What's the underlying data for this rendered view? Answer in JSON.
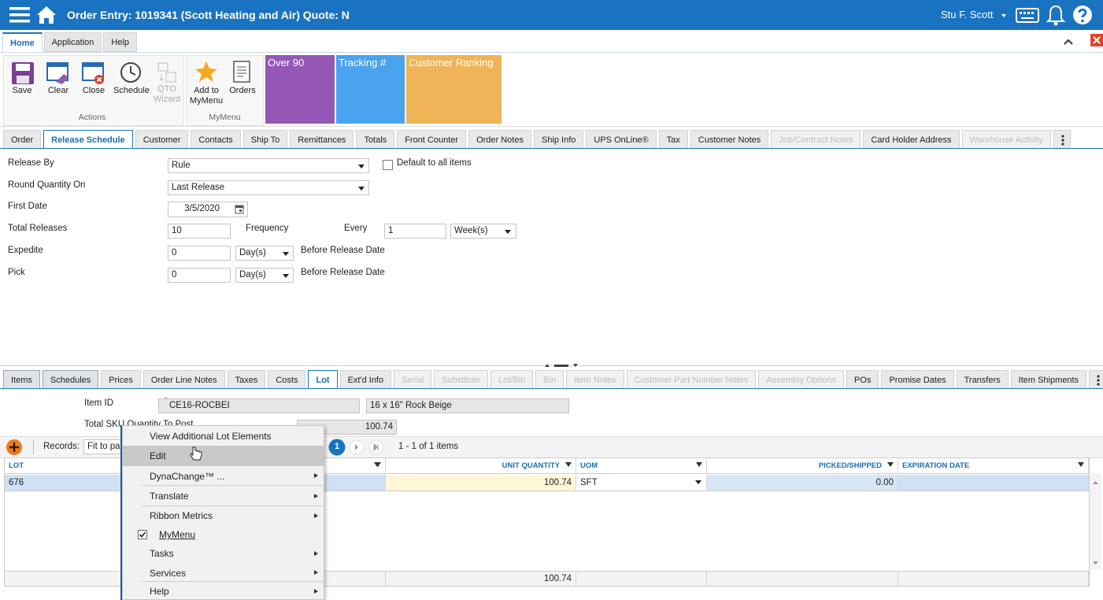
{
  "header": {
    "title": "Order Entry: 1019341 (Scott Heating and Air) Quote: N",
    "user": "Stu F. Scott"
  },
  "ribbon": {
    "tabs": [
      "Home",
      "Application",
      "Help"
    ],
    "groups": [
      {
        "label": "Actions",
        "buttons": [
          "Save",
          "Clear",
          "Close",
          "Schedule",
          "QTO Wizard"
        ]
      },
      {
        "label": "MyMenu",
        "buttons": [
          "Add to MyMenu",
          "Orders"
        ]
      }
    ],
    "tiles": [
      {
        "label": "Over 90",
        "color": "#9457b5"
      },
      {
        "label": "Tracking #",
        "color": "#4aa3ee"
      },
      {
        "label": "Customer Ranking",
        "color": "#efb458"
      }
    ]
  },
  "tabs": [
    {
      "label": "Order"
    },
    {
      "label": "Release Schedule",
      "state": "active"
    },
    {
      "label": "Customer"
    },
    {
      "label": "Contacts"
    },
    {
      "label": "Ship To"
    },
    {
      "label": "Remittances"
    },
    {
      "label": "Totals"
    },
    {
      "label": "Front Counter"
    },
    {
      "label": "Order Notes"
    },
    {
      "label": "Ship Info"
    },
    {
      "label": "UPS OnLine®"
    },
    {
      "label": "Tax"
    },
    {
      "label": "Customer Notes"
    },
    {
      "label": "Job/Contract Notes",
      "state": "disabled"
    },
    {
      "label": "Card Holder Address"
    },
    {
      "label": "Warehouse Activity",
      "state": "disabled"
    }
  ],
  "form": {
    "release_by": {
      "label": "Release By",
      "value": "Rule"
    },
    "default_all": "Default to all items",
    "round_quantity_on": {
      "label": "Round Quantity On",
      "value": "Last Release"
    },
    "first_date": {
      "label": "First Date",
      "value": "3/5/2020"
    },
    "total_releases": {
      "label": "Total Releases",
      "value": "10"
    },
    "frequency": "Frequency",
    "every": {
      "label": "Every",
      "value": "1",
      "unit": "Week(s)"
    },
    "expedite": {
      "label": "Expedite",
      "value": "0",
      "unit": "Day(s)",
      "suffix": "Before Release Date"
    },
    "pick": {
      "label": "Pick",
      "value": "0",
      "unit": "Day(s)",
      "suffix": "Before Release Date"
    }
  },
  "detail_tabs": [
    {
      "label": "Items",
      "state": "shaded"
    },
    {
      "label": "Schedules",
      "state": "shaded"
    },
    {
      "label": "Prices"
    },
    {
      "label": "Order Line Notes"
    },
    {
      "label": "Taxes"
    },
    {
      "label": "Costs"
    },
    {
      "label": "Lot",
      "state": "active"
    },
    {
      "label": "Ext'd Info"
    },
    {
      "label": "Serial",
      "state": "disabled"
    },
    {
      "label": "Substitute",
      "state": "disabled"
    },
    {
      "label": "Lot/Bin",
      "state": "disabled"
    },
    {
      "label": "Bin",
      "state": "disabled"
    },
    {
      "label": "Item Notes",
      "state": "disabled"
    },
    {
      "label": "Customer Part Number Notes",
      "state": "disabled"
    },
    {
      "label": "Assembly Options",
      "state": "disabled"
    },
    {
      "label": "POs"
    },
    {
      "label": "Promise Dates"
    },
    {
      "label": "Transfers"
    },
    {
      "label": "Item Shipments"
    }
  ],
  "item": {
    "id_label": "Item ID",
    "id": "CE16-ROCBEI",
    "description": "16 x 16\" Rock Beige",
    "total_label": "Total SKU Quantity To Post",
    "total": "100.74"
  },
  "grid": {
    "records_label": "Records:",
    "page_size": "Fit to page",
    "page": "1",
    "summary": "1 - 1 of 1 items",
    "columns": [
      {
        "label": "LOT",
        "align": "left"
      },
      {
        "label": "UNIT QUANTITY",
        "align": "right"
      },
      {
        "label": "UOM",
        "align": "left"
      },
      {
        "label": "PICKED/SHIPPED",
        "align": "right"
      },
      {
        "label": "EXPIRATION DATE",
        "align": "left"
      }
    ],
    "rows": [
      [
        "676",
        "100.74",
        "SFT",
        "0.00"
      ]
    ],
    "total": "100.74"
  },
  "context_menu": [
    {
      "label": "View Additional Lot Elements"
    },
    {
      "label": "Edit",
      "highlighted": true
    },
    {
      "label": "DynaChange™ ...",
      "submenu": true
    },
    {
      "label": "Translate",
      "submenu": true
    },
    {
      "label": "Ribbon Metrics",
      "submenu": true
    },
    {
      "label": "MyMenu",
      "checked": true
    },
    {
      "label": "Tasks",
      "submenu": true
    },
    {
      "label": "Services",
      "submenu": true
    },
    {
      "label": "Help",
      "submenu": true
    }
  ]
}
